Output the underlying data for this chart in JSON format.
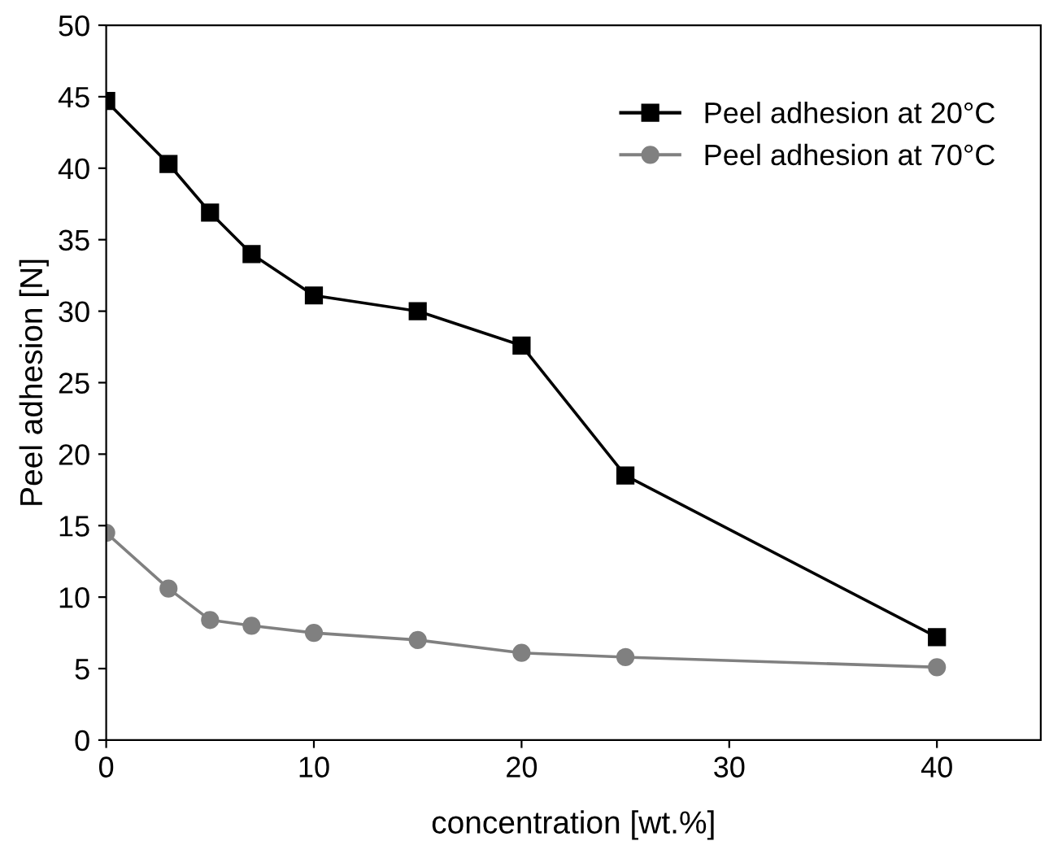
{
  "chart_data": {
    "type": "line",
    "xlabel": "concentration [wt.%]",
    "ylabel": "Peel adhesion [N]",
    "x": [
      0,
      3,
      5,
      7,
      10,
      15,
      20,
      25,
      40
    ],
    "series": [
      {
        "name": "Peel adhesion at 20°C",
        "color": "#000000",
        "marker": "square",
        "values": [
          44.7,
          40.3,
          36.9,
          34.0,
          31.1,
          30.0,
          27.6,
          18.5,
          7.2
        ]
      },
      {
        "name": "Peel adhesion at 70°C",
        "color": "#808080",
        "marker": "circle",
        "values": [
          14.5,
          10.6,
          8.4,
          8.0,
          7.5,
          7.0,
          6.1,
          5.8,
          5.1
        ]
      }
    ],
    "xlim": [
      0,
      45
    ],
    "xticks": [
      0,
      10,
      20,
      30,
      40
    ],
    "ylim": [
      0,
      50
    ],
    "yticks": [
      0,
      5,
      10,
      15,
      20,
      25,
      30,
      35,
      40,
      45,
      50
    ],
    "grid": false,
    "legend": "top right",
    "line_style": "solid"
  }
}
